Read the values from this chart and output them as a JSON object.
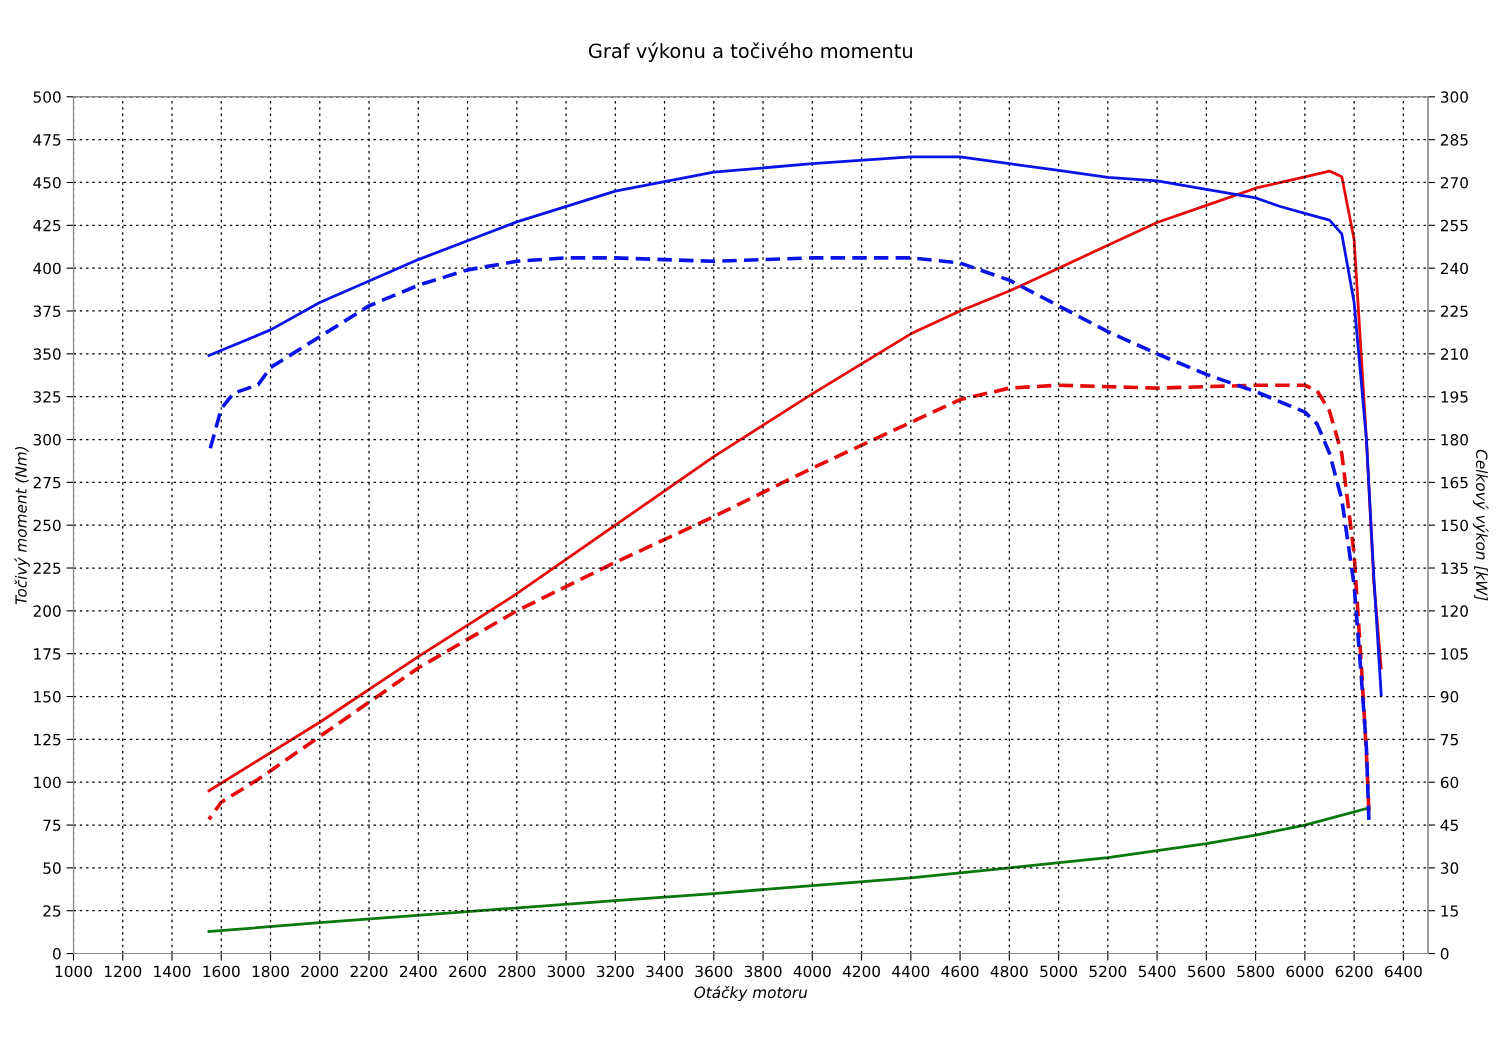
{
  "chart_data": {
    "type": "line",
    "title": "Graf výkonu a točivého momentu",
    "xlabel": "Otáčky motoru",
    "ylabel": "Točivý moment (Nm)",
    "y2label": "Celkový výkon [kW]",
    "xlim": [
      1000,
      6500
    ],
    "xticks": [
      1000,
      1200,
      1400,
      1600,
      1800,
      2000,
      2200,
      2400,
      2600,
      2800,
      3000,
      3200,
      3400,
      3600,
      3800,
      4000,
      4200,
      4400,
      4600,
      4800,
      5000,
      5200,
      5400,
      5600,
      5800,
      6000,
      6200,
      6400
    ],
    "ylim": [
      0,
      500
    ],
    "yticks": [
      0,
      25,
      50,
      75,
      100,
      125,
      150,
      175,
      200,
      225,
      250,
      275,
      300,
      325,
      350,
      375,
      400,
      425,
      450,
      475,
      500
    ],
    "y2lim": [
      0,
      300
    ],
    "y2ticks": [
      0,
      15,
      30,
      45,
      60,
      75,
      90,
      105,
      120,
      135,
      150,
      165,
      180,
      195,
      210,
      225,
      240,
      255,
      270,
      285,
      300
    ],
    "grid": true,
    "legend": false,
    "marker": "none",
    "series": [
      {
        "color": "#0a14e6",
        "line_style": "solid",
        "axis": "y",
        "x": [
          1550,
          1800,
          2000,
          2400,
          2800,
          3200,
          3600,
          4000,
          4400,
          4600,
          4800,
          5000,
          5200,
          5400,
          5600,
          5800,
          5900,
          6000,
          6100,
          6150,
          6200,
          6250,
          6280,
          6310
        ],
        "values": [
          349,
          364,
          380,
          405,
          427,
          445,
          456,
          461,
          465,
          465,
          461,
          457,
          453,
          451,
          446,
          441,
          436,
          432,
          428,
          420,
          380,
          300,
          220,
          151
        ]
      },
      {
        "color": "#0a14e6",
        "line_style": "dashed",
        "axis": "y",
        "x": [
          1550,
          1600,
          1650,
          1750,
          1800,
          2000,
          2200,
          2400,
          2600,
          2800,
          3000,
          3200,
          3600,
          4000,
          4400,
          4600,
          4800,
          5000,
          5200,
          5400,
          5600,
          5800,
          6000,
          6050,
          6100,
          6150,
          6200,
          6230,
          6250,
          6260
        ],
        "values": [
          292,
          318,
          327,
          332,
          342,
          360,
          378,
          390,
          399,
          404,
          406,
          406,
          404,
          406,
          406,
          403,
          393,
          378,
          363,
          350,
          338,
          328,
          316,
          309,
          292,
          265,
          215,
          160,
          120,
          78
        ]
      },
      {
        "color": "#e60a0a",
        "line_style": "solid",
        "axis": "y2",
        "x": [
          1550,
          2000,
          2400,
          2800,
          3200,
          3600,
          4000,
          4400,
          4600,
          4800,
          5000,
          5200,
          5400,
          5600,
          5800,
          6000,
          6100,
          6150,
          6200,
          6250,
          6280,
          6310
        ],
        "values": [
          57,
          81,
          104,
          126,
          150,
          174,
          196,
          217,
          225,
          232,
          240,
          248,
          256,
          262,
          268,
          272,
          274,
          272,
          250,
          180,
          130,
          100
        ]
      },
      {
        "color": "#e60a0a",
        "line_style": "dashed",
        "axis": "y2",
        "x": [
          1550,
          1600,
          1750,
          2000,
          2400,
          2800,
          3200,
          3600,
          4000,
          4400,
          4600,
          4800,
          5000,
          5400,
          5800,
          6000,
          6050,
          6100,
          6150,
          6200,
          6230,
          6250,
          6260
        ],
        "values": [
          47,
          53,
          61,
          76,
          100,
          120,
          137,
          153,
          170,
          186,
          194,
          198,
          199,
          198,
          199,
          199,
          197,
          190,
          175,
          140,
          100,
          70,
          50
        ]
      },
      {
        "color": "#0a780a",
        "line_style": "solid",
        "axis": "y2",
        "x": [
          1550,
          2000,
          2600,
          3200,
          3600,
          4000,
          4400,
          4800,
          5200,
          5600,
          5800,
          6000,
          6260
        ],
        "values": [
          7.7,
          10.8,
          14.7,
          18.5,
          21,
          23.8,
          26.5,
          30,
          33.6,
          38.5,
          41.5,
          45,
          51
        ]
      }
    ]
  }
}
